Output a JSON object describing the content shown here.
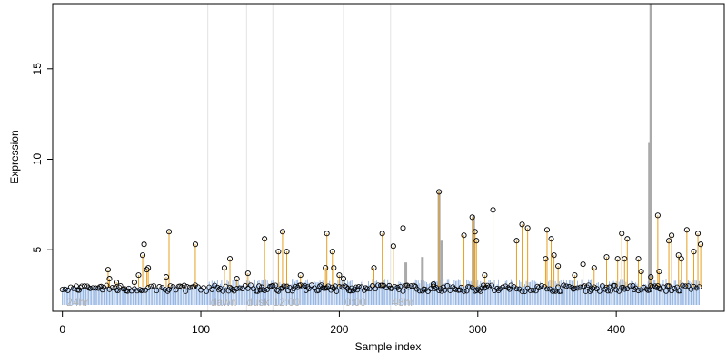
{
  "chart_data": {
    "type": "scatter",
    "title": "",
    "xlabel": "Sample index",
    "ylabel": "Expression",
    "xlim": [
      -7,
      478
    ],
    "ylim": [
      1.6,
      18.6
    ],
    "x_ticks": [
      0,
      100,
      200,
      300,
      400
    ],
    "y_ticks": [
      5,
      10,
      15
    ],
    "group_boundaries": [
      105,
      133,
      152,
      203,
      237
    ],
    "group_labels": [
      {
        "label": "24hr",
        "x": 3
      },
      {
        "label": "dawn",
        "x": 107
      },
      {
        "label": "dusk",
        "x": 133
      },
      {
        "label": "12:00",
        "x": 152
      },
      {
        "label": "0:00",
        "x": 204
      },
      {
        "label": "48hr",
        "x": 238
      }
    ],
    "baseline_level": 2.95,
    "series": [
      {
        "values": [
          [
            33,
            3.9
          ],
          [
            34,
            3.4
          ],
          [
            39,
            3.2
          ],
          [
            52,
            3.2
          ],
          [
            55,
            3.6
          ],
          [
            58,
            4.7
          ],
          [
            59,
            5.3
          ],
          [
            61,
            3.9
          ],
          [
            62,
            4.0
          ],
          [
            75,
            3.5
          ],
          [
            77,
            6.0
          ],
          [
            96,
            5.3
          ],
          [
            117,
            4.0
          ],
          [
            121,
            4.5
          ],
          [
            126,
            3.4
          ],
          [
            134,
            3.7
          ],
          [
            146,
            5.6
          ],
          [
            156,
            4.9
          ],
          [
            159,
            6.0
          ],
          [
            162,
            4.9
          ],
          [
            172,
            3.6
          ],
          [
            190,
            4.0
          ],
          [
            191,
            5.9
          ],
          [
            195,
            4.9
          ],
          [
            196,
            4.0
          ],
          [
            200,
            3.6
          ],
          [
            203,
            3.4
          ],
          [
            225,
            4.0
          ],
          [
            231,
            5.9
          ],
          [
            239,
            5.2
          ],
          [
            246,
            6.2
          ],
          [
            268,
            3.1
          ],
          [
            272,
            8.2
          ],
          [
            290,
            5.8
          ],
          [
            296,
            6.8
          ],
          [
            298,
            6.0
          ],
          [
            299,
            5.5
          ],
          [
            305,
            3.6
          ],
          [
            311,
            7.2
          ],
          [
            328,
            5.5
          ],
          [
            332,
            6.4
          ],
          [
            336,
            6.2
          ],
          [
            349,
            4.5
          ],
          [
            350,
            6.1
          ],
          [
            353,
            5.6
          ],
          [
            355,
            4.7
          ],
          [
            358,
            4.1
          ],
          [
            370,
            3.6
          ],
          [
            376,
            4.2
          ],
          [
            384,
            4.0
          ],
          [
            393,
            4.6
          ],
          [
            401,
            4.5
          ],
          [
            404,
            5.9
          ],
          [
            406,
            4.5
          ],
          [
            408,
            5.6
          ],
          [
            416,
            4.5
          ],
          [
            418,
            3.8
          ],
          [
            425,
            3.5
          ],
          [
            430,
            6.9
          ],
          [
            431,
            3.8
          ],
          [
            438,
            5.5
          ],
          [
            440,
            5.8
          ],
          [
            445,
            4.7
          ],
          [
            447,
            4.5
          ],
          [
            451,
            6.1
          ],
          [
            456,
            4.9
          ],
          [
            459,
            5.9
          ],
          [
            461,
            5.3
          ]
        ]
      },
      {
        "values": [
          [
            248,
            4.3
          ],
          [
            260,
            4.6
          ],
          [
            272,
            8.2
          ],
          [
            274,
            5.5
          ],
          [
            297,
            6.9
          ],
          [
            424,
            10.9
          ],
          [
            425,
            18.6
          ]
        ]
      }
    ]
  }
}
